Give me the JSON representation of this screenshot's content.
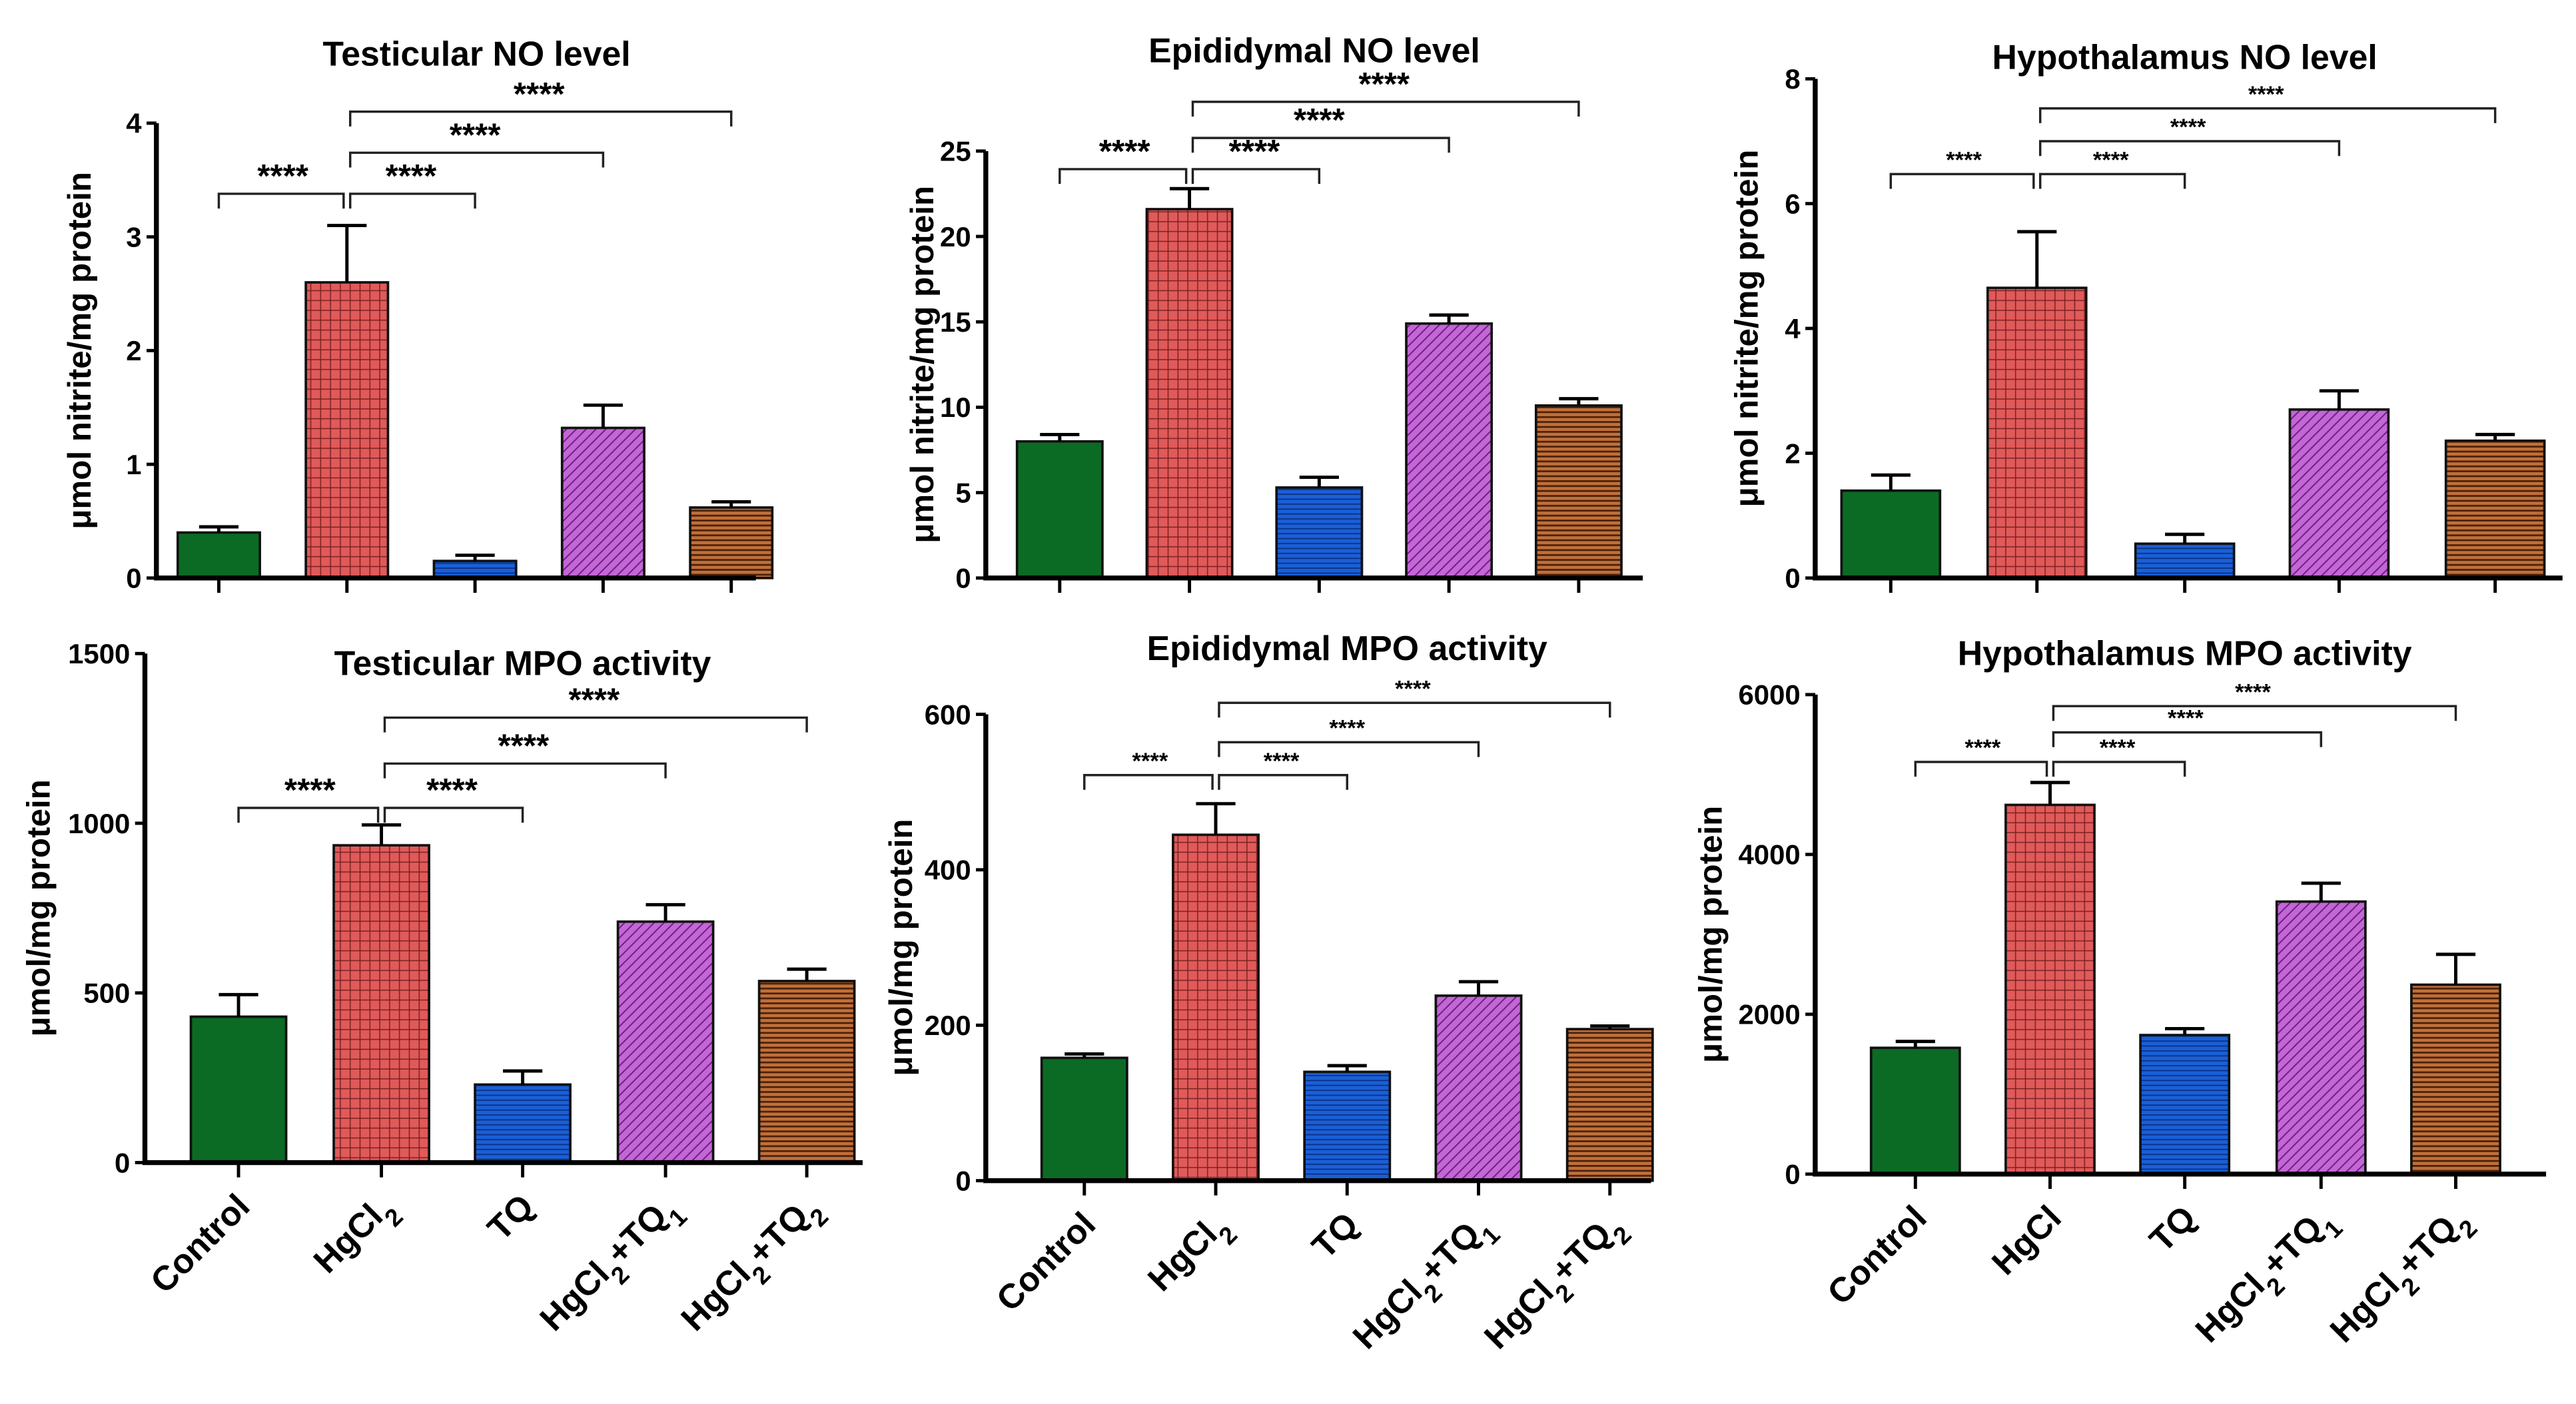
{
  "chart_data": [
    {
      "type": "bar",
      "title": "Testicular NO level",
      "ylabel": "μmol nitrite/mg protein",
      "ylim": [
        0,
        4
      ],
      "yticks": [
        0,
        1,
        2,
        3,
        4
      ],
      "categories": [
        "Control",
        "HgCl2",
        "TQ",
        "HgCl2+TQ1",
        "HgCl2+TQ2"
      ],
      "show_xlabels": false,
      "values": [
        0.4,
        2.6,
        0.15,
        1.32,
        0.62
      ],
      "errors": [
        0.05,
        0.5,
        0.05,
        0.2,
        0.05
      ],
      "comparisons": [
        {
          "a": 0,
          "b": 1,
          "label": "****"
        },
        {
          "a": 1,
          "b": 2,
          "label": "****"
        },
        {
          "a": 1,
          "b": 3,
          "label": "****"
        },
        {
          "a": 1,
          "b": 4,
          "label": "****"
        }
      ]
    },
    {
      "type": "bar",
      "title": "Epididymal NO level",
      "ylabel": "μmol nitrite/mg protein",
      "ylim": [
        0,
        25
      ],
      "yticks": [
        0,
        5,
        10,
        15,
        20,
        25
      ],
      "categories": [
        "Control",
        "HgCl2",
        "TQ",
        "HgCl2+TQ1",
        "HgCl2+TQ2"
      ],
      "show_xlabels": false,
      "values": [
        8.0,
        21.6,
        5.3,
        14.9,
        10.1
      ],
      "errors": [
        0.4,
        1.2,
        0.6,
        0.5,
        0.4
      ],
      "comparisons": [
        {
          "a": 0,
          "b": 1,
          "label": "****"
        },
        {
          "a": 1,
          "b": 2,
          "label": "****"
        },
        {
          "a": 1,
          "b": 3,
          "label": "****"
        },
        {
          "a": 1,
          "b": 4,
          "label": "****"
        }
      ]
    },
    {
      "type": "bar",
      "title": "Hypothalamus NO level",
      "ylabel": "μmol nitrite/mg protein",
      "ylim": [
        0,
        8
      ],
      "yticks": [
        0,
        2,
        4,
        6,
        8
      ],
      "categories": [
        "Control",
        "HgCl2",
        "TQ",
        "HgCl2+TQ1",
        "HgCl2+TQ2"
      ],
      "show_xlabels": false,
      "values": [
        1.4,
        4.65,
        0.55,
        2.7,
        2.2
      ],
      "errors": [
        0.25,
        0.9,
        0.15,
        0.3,
        0.1
      ],
      "comparisons": [
        {
          "a": 0,
          "b": 1,
          "label": "****"
        },
        {
          "a": 1,
          "b": 2,
          "label": "****"
        },
        {
          "a": 1,
          "b": 3,
          "label": "****"
        },
        {
          "a": 1,
          "b": 4,
          "label": "****"
        }
      ]
    },
    {
      "type": "bar",
      "title": "Testicular MPO activity",
      "ylabel": "μmol/mg protein",
      "ylim": [
        0,
        1500
      ],
      "yticks": [
        0,
        500,
        1000,
        1500
      ],
      "categories": [
        "Control",
        "HgCl2",
        "TQ",
        "HgCl2+TQ1",
        "HgCl2+TQ2"
      ],
      "show_xlabels": true,
      "values": [
        430,
        935,
        230,
        710,
        535
      ],
      "errors": [
        65,
        60,
        40,
        50,
        35
      ],
      "comparisons": [
        {
          "a": 0,
          "b": 1,
          "label": "****"
        },
        {
          "a": 1,
          "b": 2,
          "label": "****"
        },
        {
          "a": 1,
          "b": 3,
          "label": "****"
        },
        {
          "a": 1,
          "b": 4,
          "label": "****"
        }
      ]
    },
    {
      "type": "bar",
      "title": "Epididymal MPO activity",
      "ylabel": "μmol/mg protein",
      "ylim": [
        0,
        600
      ],
      "yticks": [
        0,
        200,
        400,
        600
      ],
      "categories": [
        "Control",
        "HgCl2",
        "TQ",
        "HgCl2+TQ1",
        "HgCl2+TQ2"
      ],
      "show_xlabels": true,
      "values": [
        158,
        445,
        140,
        238,
        195
      ],
      "errors": [
        5,
        40,
        8,
        18,
        4
      ],
      "comparisons": [
        {
          "a": 0,
          "b": 1,
          "label": "****"
        },
        {
          "a": 1,
          "b": 2,
          "label": "****"
        },
        {
          "a": 1,
          "b": 3,
          "label": "****"
        },
        {
          "a": 1,
          "b": 4,
          "label": "****"
        }
      ]
    },
    {
      "type": "bar",
      "title": "Hypothalamus MPO activity",
      "ylabel": "μmol/mg protein",
      "ylim": [
        0,
        6000
      ],
      "yticks": [
        0,
        2000,
        4000,
        6000
      ],
      "categories": [
        "Control",
        "HgCl",
        "TQ",
        "HgCl2+TQ1",
        "HgCl2+TQ2"
      ],
      "show_xlabels": true,
      "values": [
        1580,
        4620,
        1740,
        3410,
        2370
      ],
      "errors": [
        80,
        280,
        80,
        230,
        380
      ],
      "comparisons": [
        {
          "a": 0,
          "b": 1,
          "label": "****"
        },
        {
          "a": 1,
          "b": 2,
          "label": "****"
        },
        {
          "a": 1,
          "b": 3,
          "label": "****"
        },
        {
          "a": 1,
          "b": 4,
          "label": "****"
        }
      ]
    }
  ],
  "colors": [
    "#0b6b24",
    "#e05a5a",
    "#1a5fd6",
    "#c466d6",
    "#c0703a"
  ]
}
